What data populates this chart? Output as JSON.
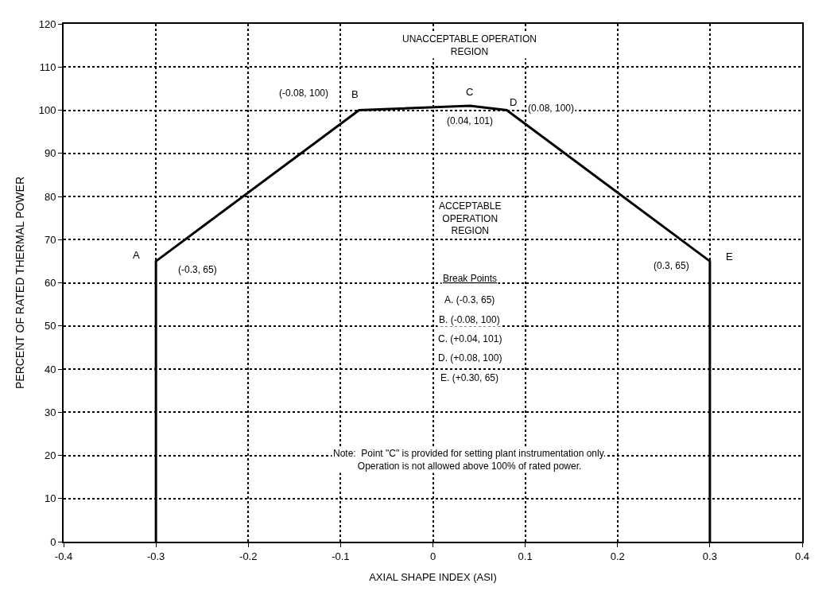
{
  "chart_data": {
    "type": "line",
    "xlabel": "AXIAL SHAPE INDEX (ASI)",
    "ylabel": "PERCENT OF RATED THERMAL POWER",
    "x": [
      -0.3,
      -0.3,
      -0.08,
      0.04,
      0.08,
      0.3,
      0.3
    ],
    "series": [
      {
        "color": "#000000",
        "values": [
          0,
          65,
          100,
          101,
          100,
          65,
          0
        ]
      }
    ],
    "xlim": [
      -0.4,
      0.4
    ],
    "xticks": [
      -0.4,
      -0.3,
      -0.2,
      -0.1,
      0,
      0.1,
      0.2,
      0.3,
      0.4
    ],
    "ylim": [
      0,
      120
    ],
    "yticks": [
      0,
      10,
      20,
      30,
      40,
      50,
      60,
      70,
      80,
      90,
      100,
      110,
      120
    ],
    "grid": true,
    "marker": "none",
    "line_style": "solid",
    "annotations": [
      {
        "text": "A",
        "x": -0.3,
        "y": 65
      },
      {
        "text": "B",
        "x": -0.08,
        "y": 100
      },
      {
        "text": "C",
        "x": 0.04,
        "y": 101
      },
      {
        "text": "D",
        "x": 0.08,
        "y": 100
      },
      {
        "text": "E",
        "x": 0.3,
        "y": 65
      },
      "(-0.3, 65)",
      "(-0.08, 100)",
      "(0.04, 101)",
      "(0.08, 100)",
      "(0.3, 65)",
      "UNACCEPTABLE OPERATION\nREGION",
      "ACCEPTABLE\nOPERATION\nREGION",
      "Break Points",
      "A. (-0.3, 65)",
      "B. (-0.08, 100)",
      "C. (+0.04, 101)",
      "D. (+0.08, 100)",
      "E. (+0.30, 65)",
      "Note:  Point \"C\" is provided for setting plant instrumentation only.\nOperation is not allowed above 100% of rated power."
    ]
  }
}
